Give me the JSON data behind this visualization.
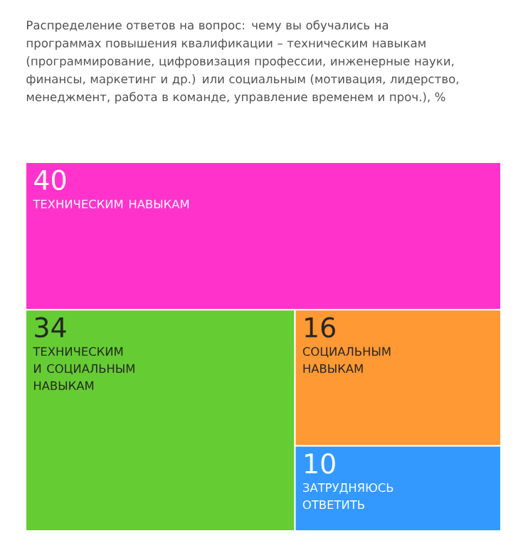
{
  "chart_data": {
    "type": "other",
    "title": "Распределение ответов на вопрос: чему вы обучались на программах повышения квалификации – техническим навыкам (программирование, цифровизация профессии, инженерные науки, финансы, маркетинг и др.) или социальным (мотивация, лидерство, менеджмент, работа в команде, управление временем и проч.), %",
    "categories": [
      "ТЕХНИЧЕСКИМ НАВЫКАМ",
      "ТЕХНИЧЕСКИМ И СОЦИАЛЬНЫМ НАВЫКАМ",
      "СОЦИАЛЬНЫМ НАВЫКАМ",
      "ЗАТРУДНЯЮСЬ ОТВЕТИТЬ"
    ],
    "values": [
      40,
      34,
      16,
      10
    ],
    "colors": [
      "#ff33cc",
      "#66cc33",
      "#ff9933",
      "#3399ff"
    ],
    "data_labels": true
  }
}
